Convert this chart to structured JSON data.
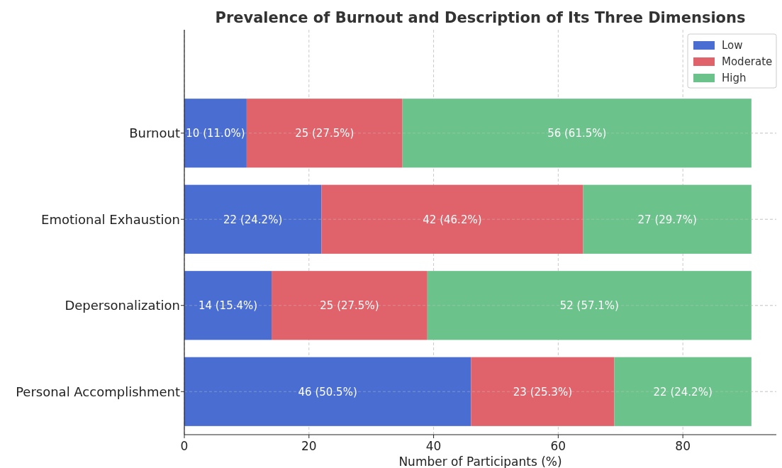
{
  "chart_data": {
    "type": "bar",
    "orientation": "horizontal",
    "stacked": true,
    "title": "Prevalence of Burnout and Description of Its Three Dimensions",
    "xlabel": "Number of Participants (%)",
    "categories": [
      "Burnout",
      "Emotional Exhaustion",
      "Depersonalization",
      "Personal Accomplishment"
    ],
    "series": [
      {
        "name": "Low",
        "color": "#4a6dd1",
        "values": [
          10,
          22,
          14,
          46
        ],
        "value_labels": [
          "10 (11.0%)",
          "22 (24.2%)",
          "14 (15.4%)",
          "46 (50.5%)"
        ]
      },
      {
        "name": "Moderate",
        "color": "#e0636b",
        "values": [
          25,
          42,
          25,
          23
        ],
        "value_labels": [
          "25 (27.5%)",
          "42 (46.2%)",
          "25 (27.5%)",
          "23 (25.3%)"
        ]
      },
      {
        "name": "High",
        "color": "#6bc28b",
        "values": [
          56,
          27,
          52,
          22
        ],
        "value_labels": [
          "56 (61.5%)",
          "27 (29.7%)",
          "52 (57.1%)",
          "22 (24.2%)"
        ]
      }
    ],
    "xlim": [
      0,
      95
    ],
    "xticks": [
      0,
      20,
      40,
      60,
      80
    ],
    "grid": true,
    "legend": "top right"
  }
}
